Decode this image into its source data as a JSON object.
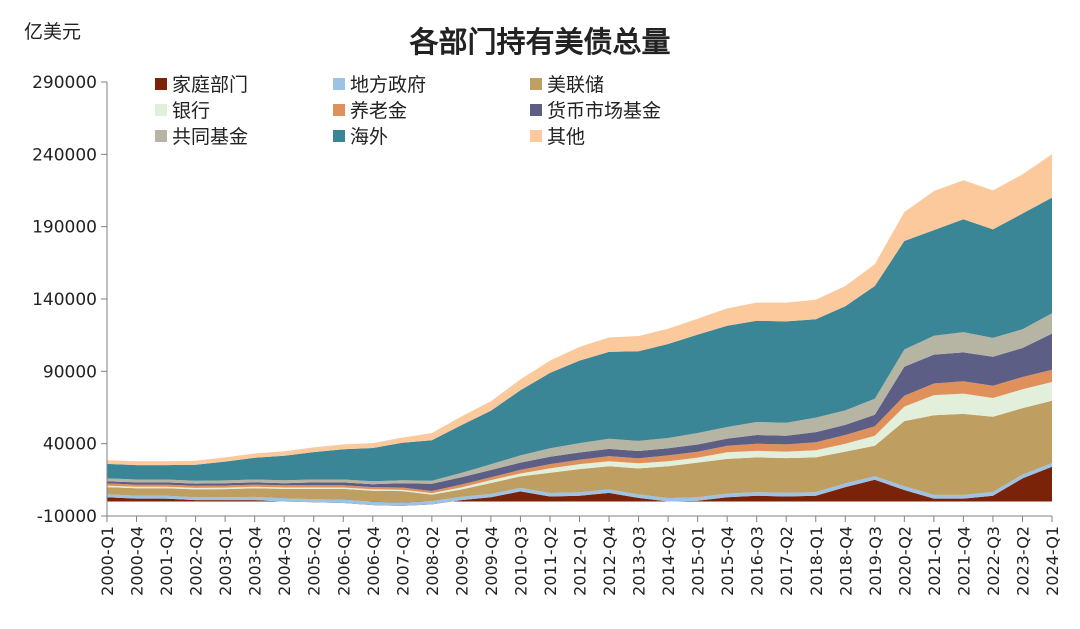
{
  "chart_data": {
    "type": "area",
    "stacked": true,
    "title": "各部门持有美债总量",
    "ylabel": "亿美元",
    "xlabel": "",
    "ylim": [
      -10000,
      290000
    ],
    "yticks": [
      -10000,
      40000,
      90000,
      140000,
      190000,
      240000,
      290000
    ],
    "xticks": [
      "2000-Q1",
      "2000-Q4",
      "2001-Q3",
      "2002-Q2",
      "2003-Q1",
      "2003-Q4",
      "2004-Q3",
      "2005-Q2",
      "2006-Q1",
      "2006-Q4",
      "2007-Q3",
      "2008-Q2",
      "2009-Q1",
      "2009-Q4",
      "2010-Q3",
      "2011-Q2",
      "2012-Q1",
      "2012-Q4",
      "2013-Q3",
      "2014-Q2",
      "2015-Q1",
      "2015-Q4",
      "2016-Q3",
      "2017-Q2",
      "2018-Q1",
      "2018-Q4",
      "2019-Q3",
      "2020-Q2",
      "2021-Q1",
      "2021-Q4",
      "2022-Q3",
      "2023-Q2",
      "2024-Q1"
    ],
    "grid": false,
    "legend": "top-left",
    "x": [
      "2000-Q1",
      "2000-Q4",
      "2001-Q3",
      "2002-Q2",
      "2003-Q1",
      "2003-Q4",
      "2004-Q3",
      "2005-Q2",
      "2006-Q1",
      "2006-Q4",
      "2007-Q3",
      "2008-Q2",
      "2009-Q1",
      "2009-Q4",
      "2010-Q3",
      "2011-Q2",
      "2012-Q1",
      "2012-Q4",
      "2013-Q3",
      "2014-Q2",
      "2015-Q1",
      "2015-Q4",
      "2016-Q3",
      "2017-Q2",
      "2018-Q1",
      "2018-Q4",
      "2019-Q3",
      "2020-Q2",
      "2021-Q1",
      "2021-Q4",
      "2022-Q3",
      "2023-Q2",
      "2024-Q1"
    ],
    "series": [
      {
        "name": "家庭部门",
        "color": "#7b2308",
        "values": [
          3000,
          2000,
          2000,
          1000,
          1000,
          1000,
          0,
          -500,
          -1000,
          -2500,
          -3000,
          -2000,
          1000,
          3000,
          7000,
          3500,
          4000,
          6000,
          2500,
          0,
          500,
          3000,
          4000,
          3500,
          4000,
          10000,
          15000,
          8000,
          2000,
          2000,
          4000,
          16000,
          24000
        ]
      },
      {
        "name": "地方政府",
        "color": "#9cc2e5",
        "values": [
          2000,
          2000,
          2000,
          2000,
          2000,
          2200,
          2200,
          2200,
          2300,
          2300,
          2300,
          2300,
          2300,
          2300,
          2400,
          2400,
          2400,
          2400,
          2400,
          2400,
          2400,
          2500,
          2500,
          2500,
          2500,
          2500,
          2500,
          2600,
          2600,
          2600,
          2600,
          2600,
          2600
        ]
      },
      {
        "name": "美联储",
        "color": "#bf9e62",
        "values": [
          5000,
          5200,
          5200,
          5400,
          5600,
          6000,
          6500,
          7000,
          7400,
          7700,
          7900,
          4500,
          5000,
          7500,
          8000,
          14000,
          16000,
          16000,
          18000,
          22000,
          24000,
          24000,
          24000,
          24000,
          24000,
          22000,
          21000,
          45000,
          55000,
          56000,
          52000,
          46000,
          43000
        ]
      },
      {
        "name": "银行",
        "color": "#e2efda",
        "values": [
          1000,
          1000,
          1000,
          1000,
          1000,
          1000,
          1000,
          1000,
          1000,
          1000,
          1000,
          1000,
          1500,
          2000,
          2000,
          3000,
          3500,
          3500,
          3500,
          3500,
          3500,
          4500,
          4500,
          4500,
          5000,
          5500,
          7000,
          10000,
          14000,
          14000,
          13000,
          13000,
          13000
        ]
      },
      {
        "name": "养老金",
        "color": "#e0905a",
        "values": [
          1500,
          1500,
          1500,
          1500,
          1500,
          1500,
          1500,
          1500,
          1500,
          1500,
          1500,
          1500,
          2000,
          2000,
          2500,
          3000,
          3000,
          3500,
          3500,
          4000,
          4000,
          4500,
          5000,
          5000,
          5500,
          6000,
          6500,
          7500,
          8000,
          8500,
          8500,
          8500,
          8500
        ]
      },
      {
        "name": "货币市场基金",
        "color": "#5c5e86",
        "values": [
          1500,
          1500,
          1500,
          1500,
          1500,
          1500,
          1500,
          2000,
          2000,
          2000,
          3000,
          5000,
          5000,
          5000,
          5000,
          5000,
          5000,
          5000,
          5000,
          5000,
          5000,
          5000,
          6000,
          6000,
          7000,
          7000,
          8000,
          20000,
          20000,
          20000,
          20000,
          20000,
          25000
        ]
      },
      {
        "name": "共同基金",
        "color": "#b6b5a4",
        "values": [
          2000,
          2000,
          2000,
          2000,
          2000,
          2000,
          2000,
          2000,
          2000,
          2000,
          2000,
          2000,
          3000,
          4000,
          5000,
          6000,
          6500,
          7000,
          7000,
          7000,
          8000,
          8000,
          9000,
          9000,
          10000,
          10000,
          11000,
          12000,
          13000,
          14000,
          13000,
          13000,
          14000
        ]
      },
      {
        "name": "海外",
        "color": "#3a8696",
        "values": [
          10000,
          10000,
          10000,
          11000,
          13000,
          15000,
          17000,
          19000,
          21000,
          23000,
          26000,
          28000,
          33000,
          37000,
          45000,
          52000,
          57000,
          60000,
          62000,
          65000,
          68000,
          70000,
          70000,
          70000,
          68000,
          72000,
          78000,
          75000,
          73000,
          78000,
          75000,
          80000,
          80000
        ]
      },
      {
        "name": "其他",
        "color": "#fbc99c",
        "values": [
          2500,
          2600,
          2700,
          2800,
          2900,
          3000,
          3100,
          3200,
          3300,
          3400,
          3500,
          5000,
          6000,
          6500,
          7500,
          8500,
          9500,
          10000,
          10500,
          10500,
          11000,
          12000,
          12500,
          13000,
          13500,
          14000,
          15000,
          20000,
          27000,
          27000,
          27000,
          27000,
          30000
        ]
      }
    ]
  }
}
